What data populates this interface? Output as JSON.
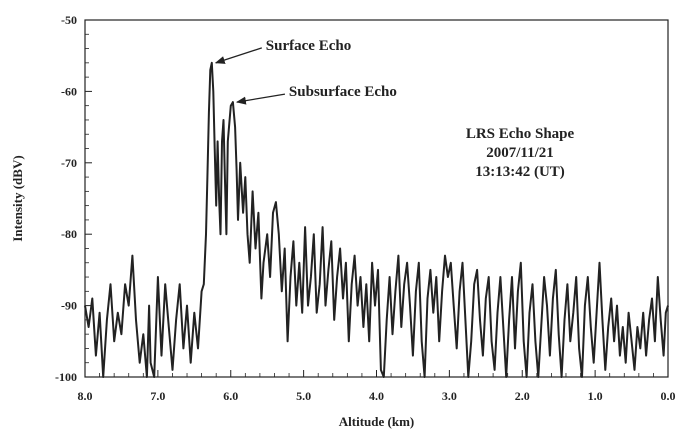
{
  "chart_data": {
    "type": "line",
    "xlabel": "Altitude (km)",
    "ylabel": "Intensity (dBV)",
    "xlim": [
      8.0,
      0.0
    ],
    "ylim": [
      -100,
      -50
    ],
    "x_reversed": true,
    "x_ticks": [
      "8.0",
      "7.0",
      "6.0",
      "5.0",
      "4.0",
      "3.0",
      "2.0",
      "1.0",
      "0.0"
    ],
    "y_ticks": [
      "-50",
      "-60",
      "-70",
      "-80",
      "-90",
      "-100"
    ],
    "grid": false,
    "series": [
      {
        "color": "#222222",
        "points": [
          [
            8.0,
            -90
          ],
          [
            7.95,
            -93
          ],
          [
            7.9,
            -89
          ],
          [
            7.85,
            -97
          ],
          [
            7.8,
            -91
          ],
          [
            7.75,
            -100
          ],
          [
            7.7,
            -92
          ],
          [
            7.65,
            -87
          ],
          [
            7.6,
            -95
          ],
          [
            7.55,
            -91
          ],
          [
            7.5,
            -94
          ],
          [
            7.45,
            -87
          ],
          [
            7.4,
            -90
          ],
          [
            7.35,
            -83
          ],
          [
            7.3,
            -92
          ],
          [
            7.25,
            -98
          ],
          [
            7.2,
            -94
          ],
          [
            7.15,
            -100
          ],
          [
            7.12,
            -90
          ],
          [
            7.1,
            -98
          ],
          [
            7.05,
            -100
          ],
          [
            7.0,
            -86
          ],
          [
            6.95,
            -97
          ],
          [
            6.9,
            -87
          ],
          [
            6.85,
            -93
          ],
          [
            6.8,
            -99
          ],
          [
            6.75,
            -92
          ],
          [
            6.7,
            -87
          ],
          [
            6.65,
            -96
          ],
          [
            6.6,
            -90
          ],
          [
            6.55,
            -98
          ],
          [
            6.5,
            -91
          ],
          [
            6.45,
            -96
          ],
          [
            6.4,
            -88
          ],
          [
            6.37,
            -87
          ],
          [
            6.34,
            -80
          ],
          [
            6.32,
            -72
          ],
          [
            6.3,
            -63
          ],
          [
            6.28,
            -57
          ],
          [
            6.26,
            -56
          ],
          [
            6.24,
            -60
          ],
          [
            6.22,
            -68
          ],
          [
            6.2,
            -76
          ],
          [
            6.18,
            -67
          ],
          [
            6.16,
            -75
          ],
          [
            6.14,
            -80
          ],
          [
            6.12,
            -67
          ],
          [
            6.1,
            -64
          ],
          [
            6.08,
            -72
          ],
          [
            6.06,
            -80
          ],
          [
            6.04,
            -67
          ],
          [
            6.0,
            -62
          ],
          [
            5.97,
            -61.5
          ],
          [
            5.94,
            -65
          ],
          [
            5.92,
            -71
          ],
          [
            5.9,
            -78
          ],
          [
            5.87,
            -70
          ],
          [
            5.83,
            -77
          ],
          [
            5.8,
            -72
          ],
          [
            5.77,
            -80
          ],
          [
            5.74,
            -84
          ],
          [
            5.7,
            -74
          ],
          [
            5.66,
            -82
          ],
          [
            5.62,
            -77
          ],
          [
            5.58,
            -89
          ],
          [
            5.55,
            -84
          ],
          [
            5.5,
            -80
          ],
          [
            5.46,
            -86
          ],
          [
            5.42,
            -77
          ],
          [
            5.38,
            -75.5
          ],
          [
            5.34,
            -80
          ],
          [
            5.3,
            -88
          ],
          [
            5.26,
            -82
          ],
          [
            5.22,
            -95
          ],
          [
            5.18,
            -86
          ],
          [
            5.14,
            -81
          ],
          [
            5.1,
            -90
          ],
          [
            5.06,
            -84
          ],
          [
            5.02,
            -91
          ],
          [
            4.98,
            -79
          ],
          [
            4.94,
            -90
          ],
          [
            4.9,
            -86
          ],
          [
            4.86,
            -80
          ],
          [
            4.82,
            -91
          ],
          [
            4.78,
            -87
          ],
          [
            4.74,
            -79
          ],
          [
            4.7,
            -90
          ],
          [
            4.66,
            -85
          ],
          [
            4.62,
            -81
          ],
          [
            4.58,
            -92
          ],
          [
            4.54,
            -86
          ],
          [
            4.5,
            -82
          ],
          [
            4.46,
            -89
          ],
          [
            4.42,
            -84
          ],
          [
            4.38,
            -95
          ],
          [
            4.34,
            -87
          ],
          [
            4.3,
            -83
          ],
          [
            4.26,
            -90
          ],
          [
            4.22,
            -86
          ],
          [
            4.18,
            -93
          ],
          [
            4.14,
            -87
          ],
          [
            4.1,
            -95
          ],
          [
            4.06,
            -84
          ],
          [
            4.02,
            -90
          ],
          [
            3.98,
            -85
          ],
          [
            3.94,
            -99
          ],
          [
            3.9,
            -100
          ],
          [
            3.86,
            -92
          ],
          [
            3.82,
            -86
          ],
          [
            3.78,
            -94
          ],
          [
            3.74,
            -88
          ],
          [
            3.7,
            -83
          ],
          [
            3.66,
            -93
          ],
          [
            3.62,
            -87
          ],
          [
            3.58,
            -84
          ],
          [
            3.54,
            -90
          ],
          [
            3.5,
            -97
          ],
          [
            3.46,
            -88
          ],
          [
            3.42,
            -84
          ],
          [
            3.38,
            -95
          ],
          [
            3.34,
            -100
          ],
          [
            3.3,
            -89
          ],
          [
            3.26,
            -85
          ],
          [
            3.22,
            -91
          ],
          [
            3.18,
            -86
          ],
          [
            3.14,
            -95
          ],
          [
            3.1,
            -88
          ],
          [
            3.06,
            -83
          ],
          [
            3.02,
            -86
          ],
          [
            2.98,
            -84
          ],
          [
            2.94,
            -90
          ],
          [
            2.9,
            -96
          ],
          [
            2.86,
            -88
          ],
          [
            2.82,
            -84
          ],
          [
            2.78,
            -92
          ],
          [
            2.74,
            -100
          ],
          [
            2.7,
            -95
          ],
          [
            2.66,
            -87
          ],
          [
            2.62,
            -85
          ],
          [
            2.58,
            -92
          ],
          [
            2.54,
            -97
          ],
          [
            2.5,
            -89
          ],
          [
            2.46,
            -86
          ],
          [
            2.42,
            -95
          ],
          [
            2.38,
            -99
          ],
          [
            2.34,
            -91
          ],
          [
            2.3,
            -86
          ],
          [
            2.26,
            -93
          ],
          [
            2.22,
            -100
          ],
          [
            2.18,
            -92
          ],
          [
            2.14,
            -86
          ],
          [
            2.1,
            -96
          ],
          [
            2.06,
            -88
          ],
          [
            2.02,
            -84
          ],
          [
            1.98,
            -95
          ],
          [
            1.94,
            -100
          ],
          [
            1.9,
            -91
          ],
          [
            1.86,
            -87
          ],
          [
            1.82,
            -95
          ],
          [
            1.78,
            -100
          ],
          [
            1.74,
            -93
          ],
          [
            1.7,
            -86
          ],
          [
            1.66,
            -90
          ],
          [
            1.62,
            -97
          ],
          [
            1.58,
            -89
          ],
          [
            1.54,
            -85
          ],
          [
            1.5,
            -94
          ],
          [
            1.46,
            -100
          ],
          [
            1.42,
            -92
          ],
          [
            1.38,
            -87
          ],
          [
            1.34,
            -95
          ],
          [
            1.3,
            -91
          ],
          [
            1.26,
            -86
          ],
          [
            1.22,
            -96
          ],
          [
            1.18,
            -100
          ],
          [
            1.14,
            -90
          ],
          [
            1.1,
            -86
          ],
          [
            1.06,
            -93
          ],
          [
            1.02,
            -98
          ],
          [
            0.98,
            -91
          ],
          [
            0.94,
            -84
          ],
          [
            0.9,
            -92
          ],
          [
            0.86,
            -99
          ],
          [
            0.82,
            -93
          ],
          [
            0.78,
            -89
          ],
          [
            0.74,
            -95
          ],
          [
            0.7,
            -90
          ],
          [
            0.66,
            -97
          ],
          [
            0.62,
            -93
          ],
          [
            0.58,
            -98
          ],
          [
            0.54,
            -91
          ],
          [
            0.5,
            -95
          ],
          [
            0.46,
            -99
          ],
          [
            0.42,
            -93
          ],
          [
            0.38,
            -96
          ],
          [
            0.34,
            -91
          ],
          [
            0.3,
            -97
          ],
          [
            0.26,
            -92
          ],
          [
            0.22,
            -89
          ],
          [
            0.18,
            -95
          ],
          [
            0.14,
            -86
          ],
          [
            0.1,
            -92
          ],
          [
            0.06,
            -97
          ],
          [
            0.03,
            -91
          ],
          [
            0.0,
            -90
          ]
        ]
      }
    ],
    "annotations": [
      {
        "text": "Surface Echo",
        "x": 6.26,
        "y": -56
      },
      {
        "text": "Subsurface Echo",
        "x": 5.97,
        "y": -61.5
      }
    ],
    "info_lines": [
      "LRS Echo Shape",
      "2007/11/21",
      "13:13:42 (UT)"
    ]
  }
}
